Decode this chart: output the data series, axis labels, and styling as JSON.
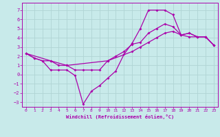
{
  "xlabel": "Windchill (Refroidissement éolien,°C)",
  "bg_color": "#c8eaea",
  "grid_color": "#b0d4d4",
  "line_color": "#aa00aa",
  "xlim": [
    -0.5,
    23.5
  ],
  "ylim": [
    -3.5,
    7.8
  ],
  "yticks": [
    -3,
    -2,
    -1,
    0,
    1,
    2,
    3,
    4,
    5,
    6,
    7
  ],
  "xticks": [
    0,
    1,
    2,
    3,
    4,
    5,
    6,
    7,
    8,
    9,
    10,
    11,
    12,
    13,
    14,
    15,
    16,
    17,
    18,
    19,
    20,
    21,
    22,
    23
  ],
  "line1_x": [
    0,
    1,
    2,
    3,
    4,
    5,
    6,
    7,
    8,
    9,
    10,
    11,
    12,
    13,
    14,
    15,
    16,
    17,
    18,
    19,
    20,
    21,
    22,
    23
  ],
  "line1_y": [
    2.3,
    1.8,
    1.5,
    0.5,
    0.5,
    0.5,
    -0.1,
    -3.2,
    -1.8,
    -1.2,
    -0.4,
    0.4,
    2.2,
    3.4,
    5.0,
    7.0,
    7.0,
    7.0,
    6.5,
    4.3,
    4.1,
    4.1,
    4.1,
    3.2
  ],
  "line2_x": [
    0,
    1,
    2,
    3,
    4,
    5,
    6,
    7,
    8,
    9,
    10,
    11,
    12,
    13,
    14,
    15,
    16,
    17,
    18,
    19,
    20,
    21,
    22,
    23
  ],
  "line2_y": [
    2.3,
    1.8,
    1.5,
    1.5,
    1.0,
    1.0,
    0.5,
    0.5,
    0.5,
    0.5,
    1.5,
    2.0,
    2.5,
    3.3,
    3.5,
    4.5,
    5.0,
    5.5,
    5.2,
    4.3,
    4.5,
    4.1,
    4.1,
    3.2
  ],
  "line3_x": [
    0,
    3,
    5,
    10,
    13,
    14,
    15,
    16,
    17,
    18,
    19,
    20,
    21,
    22,
    23
  ],
  "line3_y": [
    2.3,
    1.5,
    1.0,
    1.5,
    2.5,
    3.0,
    3.5,
    4.0,
    4.5,
    4.7,
    4.3,
    4.5,
    4.1,
    4.1,
    3.2
  ]
}
